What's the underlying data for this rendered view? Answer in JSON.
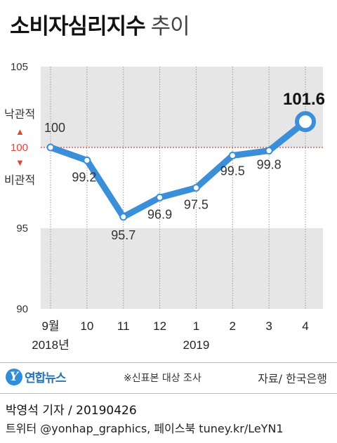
{
  "header": {
    "title": "소비자심리지수",
    "subtitle": "추이"
  },
  "annotations": {
    "optimistic": "낙관적",
    "pessimistic": "비관적",
    "up_marker": "▲",
    "down_marker": "▼"
  },
  "chart_data": {
    "type": "line",
    "categories": [
      "9월",
      "10",
      "11",
      "12",
      "1",
      "2",
      "3",
      "4"
    ],
    "year_labels": [
      "2018년",
      "2019"
    ],
    "values": [
      100,
      99.2,
      95.7,
      96.9,
      97.5,
      99.5,
      99.8,
      101.6
    ],
    "value_labels": [
      "100",
      "99.2",
      "95.7",
      "96.9",
      "97.5",
      "99.5",
      "99.8",
      "101.6"
    ],
    "ylim": [
      90,
      105
    ],
    "yticks": [
      {
        "value": 105,
        "label": "105"
      },
      {
        "value": 100,
        "label": "100"
      },
      {
        "value": 95,
        "label": "95"
      },
      {
        "value": 90,
        "label": "90"
      }
    ],
    "reference_line": 100,
    "grid": true,
    "colors": {
      "line": "#3a8fd8",
      "band": "#e6e6e6",
      "reference": "#e0453a",
      "ref_tick": "#e0453a"
    }
  },
  "footer": {
    "logo": "연합뉴스",
    "logo_mark": "Y",
    "note": "※신표본 대상 조사",
    "source": "자료/ 한국은행",
    "byline": "박영석 기자 / 20190426",
    "twitter": "트위터 @yonhap_graphics, 페이스북 tuney.kr/LeYN1"
  }
}
